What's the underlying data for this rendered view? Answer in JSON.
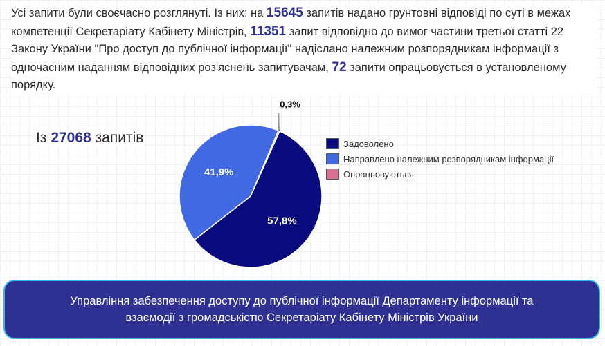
{
  "intro": {
    "t1": "Усі запити були своєчасно розглянуті. Із них: на ",
    "n1": "15645",
    "t2": " запитів надано грунтовні відповіді по суті в межах компетенції Секретаріату Кабінету Міністрів, ",
    "n2": "11351",
    "t3": " запит відповідно до вимог частини третьої статті 22 Закону України \"Про доступ до публічної інформації\" надіслано належним розпорядникам інформації з одночасним наданням відповідних роз'яснень запитувачам, ",
    "n3": "72",
    "t4": " запити опрацьовується в установленому порядку."
  },
  "total": {
    "prefix": "Із ",
    "number": "27068",
    "suffix": " запитів"
  },
  "chart_data": {
    "type": "pie",
    "categories": [
      "Задоволено",
      "Направлено належним розпорядникам інформації",
      "Опрацьовуються"
    ],
    "values": [
      57.8,
      41.9,
      0.3
    ],
    "labels": [
      "57,8%",
      "41,9%",
      "0,3%"
    ],
    "colors": [
      "#0a0a7f",
      "#4169e1",
      "#db7093"
    ],
    "legend_position": "right"
  },
  "banner": {
    "line1": "Управління забезпечення доступу до публічної інформації Департаменту інформації та",
    "line2": "взаємодії з громадськістю Секретаріату Кабінету Міністрів України"
  }
}
